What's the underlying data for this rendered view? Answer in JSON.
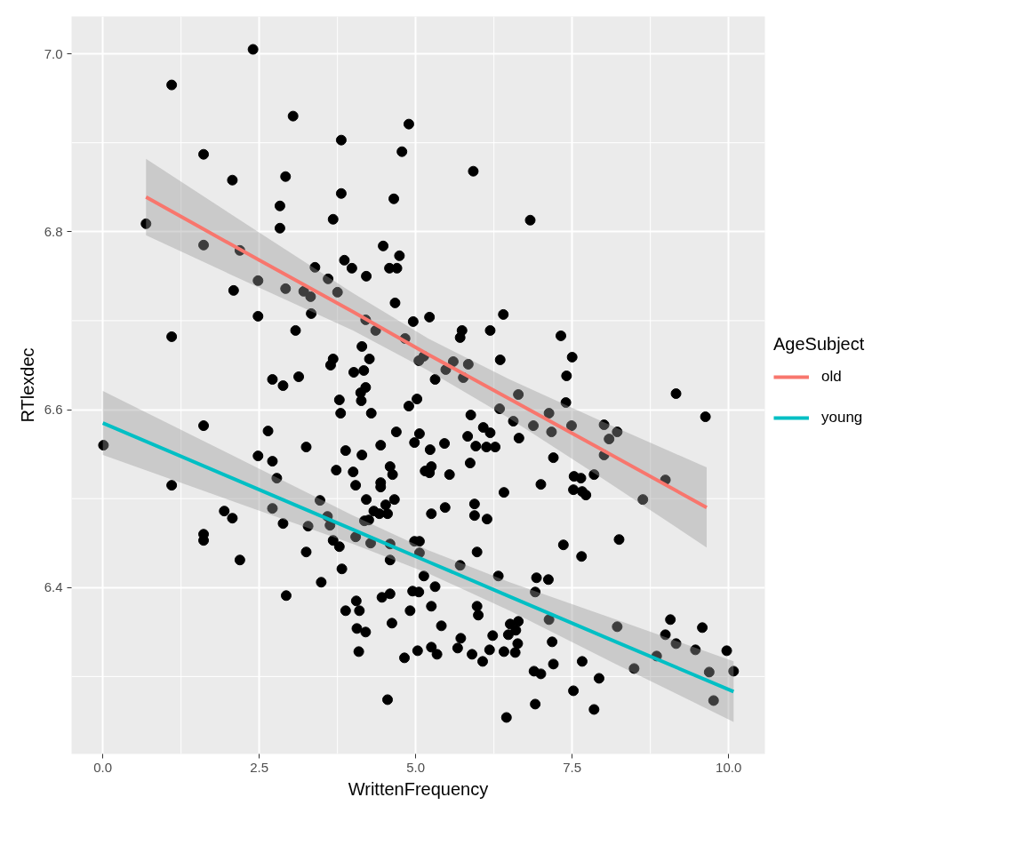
{
  "chart_data": {
    "type": "scatter",
    "xlabel": "WrittenFrequency",
    "ylabel": "RTlexdec",
    "legend_title": "AgeSubject",
    "legend": "right",
    "grid": true,
    "xlim": [
      -0.5,
      10.58
    ],
    "ylim": [
      6.213,
      7.042
    ],
    "xticks": [
      {
        "value": 0,
        "label": "0.0"
      },
      {
        "value": 2.5,
        "label": "2.5"
      },
      {
        "value": 5,
        "label": "5.0"
      },
      {
        "value": 7.5,
        "label": "7.5"
      },
      {
        "value": 10,
        "label": "10.0"
      }
    ],
    "yticks": [
      {
        "value": 6.4,
        "label": "6.4"
      },
      {
        "value": 6.6,
        "label": "6.6"
      },
      {
        "value": 6.8,
        "label": "6.8"
      },
      {
        "value": 7.0,
        "label": "7.0"
      }
    ],
    "series": [
      {
        "color": "#000000",
        "marker": "circle",
        "x": [
          2.4,
          1.1,
          3.04,
          4.89,
          3.81,
          1.61,
          4.78,
          2.07,
          2.92,
          5.92,
          3.81,
          4.65,
          2.83,
          0.69,
          3.68,
          2.83,
          6.83,
          1.61,
          4.48,
          2.19,
          4.74,
          3.86,
          3.39,
          3.98,
          4.58,
          4.7,
          3.6,
          2.48,
          4.21,
          2.09,
          2.92,
          3.21,
          3.32,
          3.75,
          3.33,
          2.48,
          5.22,
          6.4,
          4.67,
          4.2,
          4.96,
          3.08,
          4.36,
          6.19,
          5.74,
          5.71,
          1.1,
          7.32,
          4.83,
          4.14,
          4.26,
          3.68,
          3.64,
          5.05,
          5.13,
          6.35,
          7.5,
          7.41,
          5.31,
          5.48,
          5.6,
          5.76,
          5.84,
          4.01,
          4.17,
          2.71,
          2.88,
          3.13,
          4.2,
          4.12,
          3.78,
          3.8,
          4.13,
          4.29,
          5.02,
          4.89,
          9.16,
          9.63,
          7.4,
          7.13,
          6.64,
          6.34,
          6.56,
          6.88,
          7.17,
          7.49,
          6.65,
          7.2,
          8.01,
          8.22,
          8.09,
          8.01,
          7.85,
          7.53,
          7.64,
          7.52,
          7.66,
          7.72,
          7.0,
          6.41,
          8.99,
          8.63,
          7.36,
          8.25,
          7.65,
          5.88,
          4.69,
          5.06,
          4.98,
          5.23,
          5.46,
          5.83,
          5.96,
          6.08,
          6.19,
          6.13,
          6.27,
          5.87,
          5.25,
          5.15,
          5.22,
          5.54,
          4.66,
          5.25,
          5.47,
          5.94,
          5.94,
          6.14,
          4.98,
          5.06,
          5.06,
          5.98,
          5.71,
          5.13,
          6.32,
          6.93,
          7.12,
          6.91,
          4.95,
          5.05,
          5.31,
          5.25,
          4.91,
          5.98,
          6.0,
          5.41,
          6.51,
          6.64,
          6.48,
          6.6,
          6.63,
          6.59,
          6.41,
          6.23,
          5.72,
          5.67,
          5.9,
          6.07,
          6.18,
          5.25,
          5.34,
          5.03,
          4.82,
          7.18,
          7.13,
          7.2,
          6.89,
          7.0,
          7.66,
          7.93,
          7.52,
          6.91,
          7.85,
          6.45,
          8.22,
          8.49,
          9.07,
          8.99,
          9.16,
          9.58,
          8.85,
          9.47,
          9.97,
          9.69,
          10.08,
          9.76,
          4.55,
          0.01,
          1.61,
          1.1,
          2.64,
          3.25,
          2.48,
          2.71,
          2.78,
          2.71,
          1.94,
          2.07,
          1.61,
          1.61,
          2.19,
          2.88,
          3.28,
          3.47,
          3.63,
          3.59,
          3.68,
          3.78,
          3.25,
          3.82,
          3.49,
          2.93,
          4.05,
          3.88,
          4.1,
          4.46,
          4.59,
          4.06,
          4.2,
          4.09,
          4.62,
          3.73,
          3.88,
          4.0,
          4.04,
          4.14,
          4.44,
          4.59,
          4.63,
          4.44,
          4.44,
          4.21,
          4.52,
          4.33,
          4.42,
          4.55,
          4.18,
          4.25,
          4.04,
          4.28,
          4.59,
          4.59
        ],
        "values": [
          7.005,
          6.965,
          6.93,
          6.921,
          6.903,
          6.887,
          6.89,
          6.858,
          6.862,
          6.868,
          6.843,
          6.837,
          6.829,
          6.809,
          6.814,
          6.804,
          6.813,
          6.785,
          6.784,
          6.779,
          6.773,
          6.768,
          6.76,
          6.759,
          6.759,
          6.759,
          6.747,
          6.745,
          6.75,
          6.734,
          6.736,
          6.733,
          6.727,
          6.732,
          6.708,
          6.705,
          6.704,
          6.707,
          6.72,
          6.701,
          6.699,
          6.689,
          6.689,
          6.689,
          6.689,
          6.681,
          6.682,
          6.683,
          6.68,
          6.671,
          6.657,
          6.657,
          6.65,
          6.655,
          6.66,
          6.656,
          6.659,
          6.638,
          6.634,
          6.645,
          6.654,
          6.636,
          6.651,
          6.642,
          6.644,
          6.634,
          6.627,
          6.637,
          6.625,
          6.619,
          6.611,
          6.596,
          6.61,
          6.596,
          6.612,
          6.604,
          6.618,
          6.592,
          6.608,
          6.596,
          6.617,
          6.601,
          6.587,
          6.582,
          6.575,
          6.582,
          6.568,
          6.546,
          6.583,
          6.575,
          6.567,
          6.549,
          6.527,
          6.525,
          6.523,
          6.51,
          6.508,
          6.504,
          6.516,
          6.507,
          6.521,
          6.499,
          6.448,
          6.454,
          6.435,
          6.594,
          6.575,
          6.573,
          6.563,
          6.555,
          6.562,
          6.57,
          6.559,
          6.58,
          6.574,
          6.558,
          6.558,
          6.54,
          6.536,
          6.531,
          6.529,
          6.527,
          6.499,
          6.483,
          6.49,
          6.494,
          6.481,
          6.477,
          6.452,
          6.452,
          6.439,
          6.44,
          6.425,
          6.413,
          6.413,
          6.411,
          6.409,
          6.395,
          6.396,
          6.395,
          6.401,
          6.379,
          6.374,
          6.379,
          6.369,
          6.357,
          6.359,
          6.362,
          6.347,
          6.352,
          6.337,
          6.327,
          6.328,
          6.346,
          6.343,
          6.332,
          6.325,
          6.317,
          6.33,
          6.333,
          6.325,
          6.329,
          6.321,
          6.339,
          6.364,
          6.314,
          6.306,
          6.303,
          6.317,
          6.298,
          6.284,
          6.269,
          6.263,
          6.254,
          6.356,
          6.309,
          6.364,
          6.347,
          6.337,
          6.355,
          6.323,
          6.33,
          6.329,
          6.305,
          6.306,
          6.273,
          6.274,
          6.56,
          6.582,
          6.515,
          6.576,
          6.558,
          6.548,
          6.542,
          6.523,
          6.489,
          6.486,
          6.478,
          6.46,
          6.453,
          6.431,
          6.472,
          6.469,
          6.498,
          6.47,
          6.48,
          6.453,
          6.446,
          6.44,
          6.421,
          6.406,
          6.391,
          6.385,
          6.374,
          6.374,
          6.389,
          6.393,
          6.354,
          6.35,
          6.328,
          6.36,
          6.532,
          6.554,
          6.53,
          6.515,
          6.549,
          6.56,
          6.536,
          6.527,
          6.518,
          6.513,
          6.499,
          6.493,
          6.486,
          6.483,
          6.483,
          6.475,
          6.476,
          6.457,
          6.45,
          6.449,
          6.431
        ]
      },
      {
        "type": "line",
        "marker": "none",
        "name": "old",
        "color": "#f8766d",
        "x": [
          0.69,
          2.5,
          4.0,
          5.2,
          6.5,
          8.0,
          9.65
        ],
        "values": [
          6.839,
          6.768,
          6.71,
          6.662,
          6.612,
          6.554,
          6.49
        ],
        "lower": [
          6.796,
          6.737,
          6.689,
          6.644,
          6.59,
          6.522,
          6.445
        ],
        "upper": [
          6.882,
          6.799,
          6.731,
          6.68,
          6.634,
          6.586,
          6.535
        ]
      },
      {
        "type": "line",
        "marker": "none",
        "name": "young",
        "color": "#00bfc4",
        "x": [
          0.0,
          2.0,
          4.0,
          5.2,
          6.5,
          8.2,
          10.08
        ],
        "values": [
          6.585,
          6.525,
          6.465,
          6.429,
          6.39,
          6.339,
          6.283
        ],
        "lower": [
          6.549,
          6.499,
          6.449,
          6.416,
          6.374,
          6.314,
          6.249
        ],
        "upper": [
          6.621,
          6.551,
          6.481,
          6.442,
          6.406,
          6.364,
          6.317
        ]
      }
    ]
  }
}
